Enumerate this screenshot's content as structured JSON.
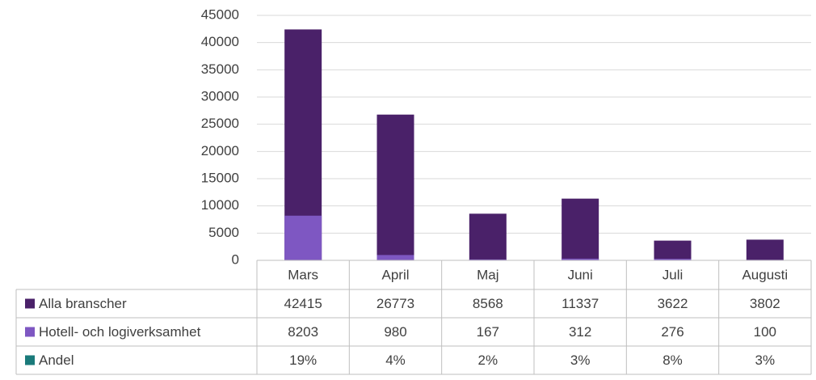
{
  "chart_data": {
    "type": "bar",
    "categories": [
      "Mars",
      "April",
      "Maj",
      "Juni",
      "Juli",
      "Augusti"
    ],
    "series": [
      {
        "name": "Alla branscher",
        "color": "#4a2169",
        "values": [
          42415,
          26773,
          8568,
          11337,
          3622,
          3802
        ]
      },
      {
        "name": "Hotell- och logiverksamhet",
        "color": "#7e57c2",
        "values": [
          8203,
          980,
          167,
          312,
          276,
          100
        ]
      },
      {
        "name": "Andel",
        "color": "#1a7a7a",
        "values": [
          19,
          4,
          2,
          3,
          8,
          3
        ],
        "value_labels": [
          "19%",
          "4%",
          "2%",
          "3%",
          "8%",
          "3%"
        ]
      }
    ],
    "ylim": [
      0,
      45000
    ],
    "yticks": [
      0,
      5000,
      10000,
      15000,
      20000,
      25000,
      30000,
      35000,
      40000,
      45000
    ],
    "grid": true,
    "data_table": true
  }
}
